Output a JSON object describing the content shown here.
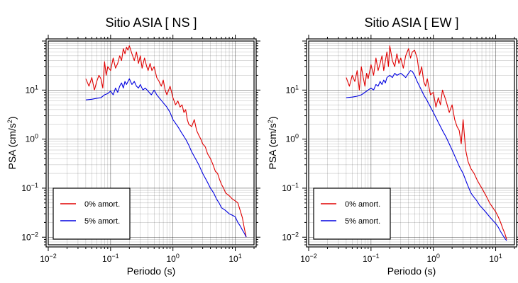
{
  "chart_data": [
    {
      "type": "line",
      "title": "Sitio ASIA [ NS ]",
      "xlabel": "Periodo (s)",
      "ylabel_main": "PSA (cm/s",
      "ylabel_sup": "2",
      "ylabel_close": ")",
      "x_scale": "log",
      "y_scale": "log",
      "xlim": [
        0.01,
        20
      ],
      "ylim": [
        0.007,
        100
      ],
      "grid": true,
      "legend_position": "bottom-left",
      "x_ticks": [
        {
          "value": 0.01,
          "base": "10",
          "exp": "−2"
        },
        {
          "value": 0.1,
          "base": "10",
          "exp": "−1"
        },
        {
          "value": 1,
          "base": "10",
          "exp": "0"
        },
        {
          "value": 10,
          "base": "10",
          "exp": "1"
        }
      ],
      "y_ticks": [
        {
          "value": 0.01,
          "base": "10",
          "exp": "−2"
        },
        {
          "value": 0.1,
          "base": "10",
          "exp": "−1"
        },
        {
          "value": 1,
          "base": "10",
          "exp": "0"
        },
        {
          "value": 10,
          "base": "10",
          "exp": "1"
        }
      ],
      "series": [
        {
          "name": "0% amort.",
          "color": "#e00000",
          "x": [
            0.04,
            0.045,
            0.05,
            0.055,
            0.06,
            0.065,
            0.07,
            0.075,
            0.08,
            0.085,
            0.09,
            0.1,
            0.11,
            0.12,
            0.13,
            0.14,
            0.15,
            0.16,
            0.17,
            0.18,
            0.19,
            0.2,
            0.22,
            0.24,
            0.26,
            0.28,
            0.3,
            0.32,
            0.35,
            0.38,
            0.4,
            0.43,
            0.46,
            0.5,
            0.55,
            0.6,
            0.65,
            0.7,
            0.75,
            0.8,
            0.9,
            1.0,
            1.1,
            1.2,
            1.3,
            1.4,
            1.5,
            1.6,
            1.7,
            1.8,
            2.0,
            2.2,
            2.4,
            2.6,
            2.8,
            3.0,
            3.3,
            3.6,
            4.0,
            4.4,
            4.8,
            5.2,
            5.6,
            6.0,
            6.5,
            7.0,
            8.0,
            9.0,
            10.0,
            11.0,
            12.0,
            13.0,
            14.0,
            15.0
          ],
          "y": [
            17,
            12,
            18,
            10,
            15,
            20,
            17,
            11,
            38,
            20,
            30,
            25,
            45,
            28,
            35,
            50,
            40,
            70,
            55,
            75,
            65,
            80,
            55,
            40,
            60,
            35,
            50,
            28,
            45,
            30,
            25,
            35,
            25,
            30,
            18,
            15,
            12,
            16,
            10,
            8,
            12,
            7,
            5,
            6,
            4.5,
            5,
            3.5,
            4,
            2.5,
            2,
            1.8,
            2.5,
            1.5,
            1.2,
            1.0,
            0.8,
            0.7,
            0.5,
            0.4,
            0.3,
            0.22,
            0.2,
            0.15,
            0.12,
            0.1,
            0.08,
            0.07,
            0.06,
            0.055,
            0.05,
            0.035,
            0.025,
            0.015,
            0.01
          ]
        },
        {
          "name": "5% amort.",
          "color": "#0000e0",
          "x": [
            0.04,
            0.05,
            0.06,
            0.07,
            0.08,
            0.09,
            0.1,
            0.11,
            0.12,
            0.13,
            0.14,
            0.15,
            0.16,
            0.17,
            0.18,
            0.2,
            0.22,
            0.24,
            0.26,
            0.28,
            0.3,
            0.33,
            0.36,
            0.4,
            0.45,
            0.5,
            0.55,
            0.6,
            0.7,
            0.8,
            0.9,
            1.0,
            1.2,
            1.4,
            1.6,
            1.8,
            2.0,
            2.3,
            2.6,
            3.0,
            3.5,
            4.0,
            4.5,
            5.0,
            5.5,
            6.0,
            7.0,
            8.0,
            9.0,
            10.0,
            11.0,
            12.0,
            13.0,
            14.0,
            15.0
          ],
          "y": [
            6.3,
            6.5,
            6.8,
            7.0,
            8.0,
            8.5,
            9.5,
            8.0,
            11.0,
            9.0,
            12.0,
            14.0,
            11.0,
            15.0,
            13.0,
            17.0,
            13.0,
            15.0,
            12.0,
            11.0,
            13.0,
            10.0,
            11.0,
            9.5,
            8.0,
            10.0,
            8.0,
            7.0,
            5.5,
            4.5,
            3.5,
            2.5,
            1.8,
            1.3,
            1.0,
            0.75,
            0.55,
            0.4,
            0.3,
            0.2,
            0.14,
            0.1,
            0.08,
            0.06,
            0.05,
            0.04,
            0.035,
            0.03,
            0.028,
            0.026,
            0.02,
            0.017,
            0.014,
            0.012,
            0.01
          ]
        }
      ]
    },
    {
      "type": "line",
      "title": "Sitio ASIA [ EW ]",
      "xlabel": "Periodo (s)",
      "ylabel_main": "PSA (cm/s",
      "ylabel_sup": "2",
      "ylabel_close": ")",
      "x_scale": "log",
      "y_scale": "log",
      "xlim": [
        0.01,
        20
      ],
      "ylim": [
        0.007,
        100
      ],
      "grid": true,
      "legend_position": "bottom-left",
      "x_ticks": [
        {
          "value": 0.01,
          "base": "10",
          "exp": "−2"
        },
        {
          "value": 0.1,
          "base": "10",
          "exp": "−1"
        },
        {
          "value": 1,
          "base": "10",
          "exp": "0"
        },
        {
          "value": 10,
          "base": "10",
          "exp": "1"
        }
      ],
      "y_ticks": [
        {
          "value": 0.01,
          "base": "10",
          "exp": "−2"
        },
        {
          "value": 0.1,
          "base": "10",
          "exp": "−1"
        },
        {
          "value": 1,
          "base": "10",
          "exp": "0"
        },
        {
          "value": 10,
          "base": "10",
          "exp": "1"
        }
      ],
      "series": [
        {
          "name": "0% amort.",
          "color": "#e00000",
          "x": [
            0.04,
            0.045,
            0.05,
            0.055,
            0.06,
            0.065,
            0.07,
            0.075,
            0.08,
            0.085,
            0.09,
            0.1,
            0.11,
            0.12,
            0.13,
            0.14,
            0.15,
            0.16,
            0.17,
            0.18,
            0.19,
            0.2,
            0.22,
            0.24,
            0.26,
            0.28,
            0.3,
            0.33,
            0.36,
            0.4,
            0.43,
            0.46,
            0.5,
            0.55,
            0.6,
            0.65,
            0.7,
            0.75,
            0.8,
            0.9,
            1.0,
            1.1,
            1.2,
            1.3,
            1.4,
            1.6,
            1.8,
            2.0,
            2.2,
            2.4,
            2.6,
            2.8,
            3.0,
            3.3,
            3.6,
            4.0,
            4.5,
            5.0,
            5.5,
            6.0,
            7.0,
            8.0,
            9.0,
            10.0,
            11.0,
            12.0,
            13.0,
            14.0,
            15.0
          ],
          "y": [
            18,
            12,
            20,
            15,
            25,
            10,
            30,
            18,
            12,
            22,
            17,
            33,
            20,
            45,
            25,
            35,
            50,
            25,
            40,
            60,
            30,
            80,
            40,
            30,
            55,
            35,
            45,
            28,
            50,
            70,
            45,
            60,
            65,
            45,
            20,
            30,
            15,
            12,
            17,
            8,
            9,
            4.5,
            7,
            5,
            10,
            6,
            3.5,
            5,
            2.5,
            1.8,
            1.5,
            0.8,
            2.5,
            0.6,
            0.35,
            0.25,
            0.2,
            0.15,
            0.12,
            0.1,
            0.07,
            0.05,
            0.04,
            0.033,
            0.026,
            0.02,
            0.015,
            0.012,
            0.009
          ]
        },
        {
          "name": "5% amort.",
          "color": "#0000e0",
          "x": [
            0.04,
            0.05,
            0.06,
            0.07,
            0.08,
            0.09,
            0.1,
            0.11,
            0.12,
            0.13,
            0.14,
            0.15,
            0.16,
            0.17,
            0.18,
            0.2,
            0.22,
            0.24,
            0.26,
            0.28,
            0.3,
            0.33,
            0.36,
            0.4,
            0.43,
            0.46,
            0.5,
            0.55,
            0.6,
            0.7,
            0.8,
            0.9,
            1.0,
            1.2,
            1.4,
            1.6,
            1.8,
            2.0,
            2.3,
            2.6,
            3.0,
            3.5,
            4.0,
            4.5,
            5.0,
            5.5,
            6.0,
            7.0,
            8.0,
            9.0,
            10.0,
            11.0,
            12.0,
            13.0,
            14.0,
            15.0
          ],
          "y": [
            7.0,
            7.2,
            7.5,
            8.0,
            9.0,
            10.0,
            11.0,
            10.0,
            13.0,
            12.0,
            15.0,
            13.0,
            16.0,
            14.0,
            18.0,
            20.0,
            18.0,
            22.0,
            20.0,
            21.0,
            22.0,
            20.0,
            18.0,
            22.0,
            25.0,
            24.0,
            20.0,
            15.0,
            12.0,
            8.0,
            6.0,
            4.5,
            3.5,
            2.2,
            1.5,
            1.1,
            0.8,
            0.6,
            0.4,
            0.28,
            0.2,
            0.12,
            0.08,
            0.065,
            0.055,
            0.045,
            0.04,
            0.032,
            0.026,
            0.022,
            0.019,
            0.016,
            0.013,
            0.011,
            0.0095,
            0.0085
          ]
        }
      ]
    }
  ]
}
